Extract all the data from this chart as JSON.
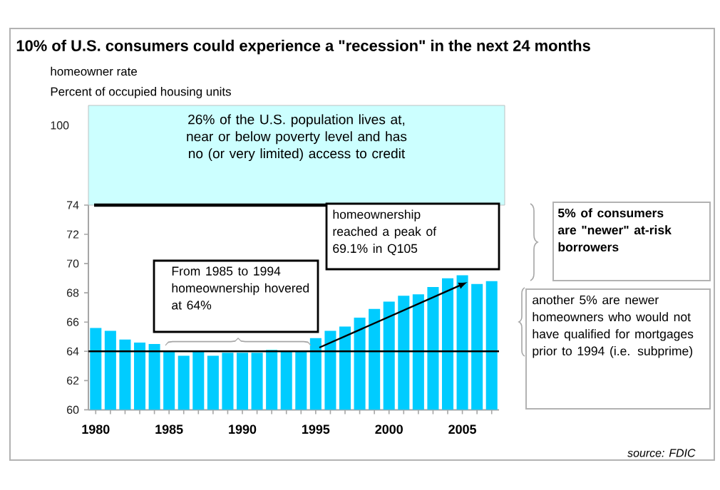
{
  "chart_data": {
    "type": "bar",
    "title": "10% of U.S. consumers could experience a \"recession\" in the next 24 months",
    "subtitle": "homeowner rate",
    "categories": [
      "1980",
      null,
      null,
      null,
      null,
      "1985",
      null,
      null,
      null,
      null,
      "1990",
      null,
      null,
      null,
      null,
      "1995",
      null,
      null,
      null,
      null,
      "2000",
      null,
      null,
      null,
      null,
      "2005",
      null,
      null
    ],
    "series": [
      {
        "color": "#00ccff",
        "values": [
          65.6,
          65.4,
          64.8,
          64.6,
          64.5,
          64.0,
          63.7,
          64.0,
          63.7,
          63.9,
          63.9,
          63.9,
          64.1,
          64.0,
          64.0,
          64.9,
          65.4,
          65.7,
          66.3,
          66.9,
          67.4,
          67.8,
          67.9,
          68.4,
          69.0,
          69.2,
          68.6,
          68.8
        ]
      }
    ],
    "ylim": [
      60,
      74
    ],
    "yticks": [
      60,
      62,
      64,
      66,
      68,
      70,
      72,
      74
    ],
    "ref_lines": [
      {
        "axis": "y",
        "value": 64,
        "color": "#000000"
      }
    ],
    "annotations": [
      "Percent of occupied housing units",
      "100",
      "26% of the U.S. population lives at, near or below poverty level and has no (or very limited) access to credit",
      "homeownership reached a peak of 69.1% in Q105",
      "From 1985 to 1994 homeownership hovered at 64%",
      "**5% of consumers are \"newer\" at-risk borrowers**",
      "another 5% are newer homeowners who would not have qualified for mortgages prior to 1994 (i.e. subprime)",
      "*source: FDIC*"
    ]
  }
}
